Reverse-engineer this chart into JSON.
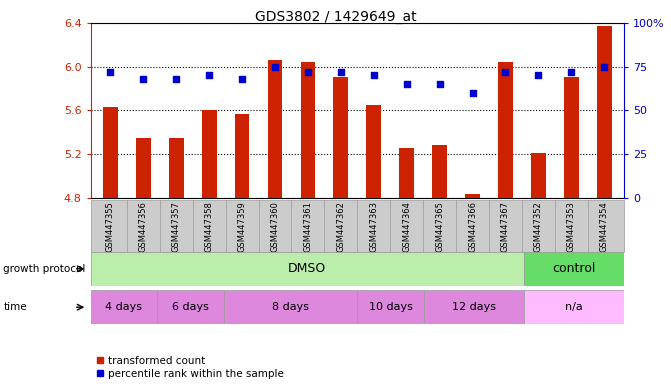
{
  "title": "GDS3802 / 1429649_at",
  "samples": [
    "GSM447355",
    "GSM447356",
    "GSM447357",
    "GSM447358",
    "GSM447359",
    "GSM447360",
    "GSM447361",
    "GSM447362",
    "GSM447363",
    "GSM447364",
    "GSM447365",
    "GSM447366",
    "GSM447367",
    "GSM447352",
    "GSM447353",
    "GSM447354"
  ],
  "bar_values": [
    5.63,
    5.35,
    5.35,
    5.6,
    5.57,
    6.06,
    6.04,
    5.91,
    5.65,
    5.26,
    5.28,
    4.83,
    6.04,
    5.21,
    5.91,
    6.37
  ],
  "dot_values": [
    72,
    68,
    68,
    70,
    68,
    75,
    72,
    72,
    70,
    65,
    65,
    60,
    72,
    70,
    72,
    75
  ],
  "bar_bottom": 4.8,
  "ylim_left": [
    4.8,
    6.4
  ],
  "ylim_right": [
    0,
    100
  ],
  "yticks_left": [
    4.8,
    5.2,
    5.6,
    6.0,
    6.4
  ],
  "yticks_right": [
    0,
    25,
    50,
    75,
    100
  ],
  "ytick_labels_left": [
    "4.8",
    "5.2",
    "5.6",
    "6.0",
    "6.4"
  ],
  "ytick_labels_right": [
    "0",
    "25",
    "50",
    "75",
    "100%"
  ],
  "bar_color": "#cc2200",
  "dot_color": "#0000cc",
  "bg_color": "#ffffff",
  "sample_bg": "#cccccc",
  "dmso_color": "#bbeeaa",
  "control_color": "#66dd66",
  "time_color": "#dd88dd",
  "na_color": "#ffbbff",
  "legend_items": [
    {
      "label": "transformed count",
      "color": "#cc2200"
    },
    {
      "label": "percentile rank within the sample",
      "color": "#0000cc"
    }
  ],
  "n_samples": 16,
  "dmso_count": 13,
  "time_starts": [
    0,
    2,
    4,
    8,
    10,
    13
  ],
  "time_ends": [
    2,
    4,
    8,
    10,
    13,
    16
  ],
  "time_labels": [
    "4 days",
    "6 days",
    "8 days",
    "10 days",
    "12 days",
    "n/a"
  ]
}
